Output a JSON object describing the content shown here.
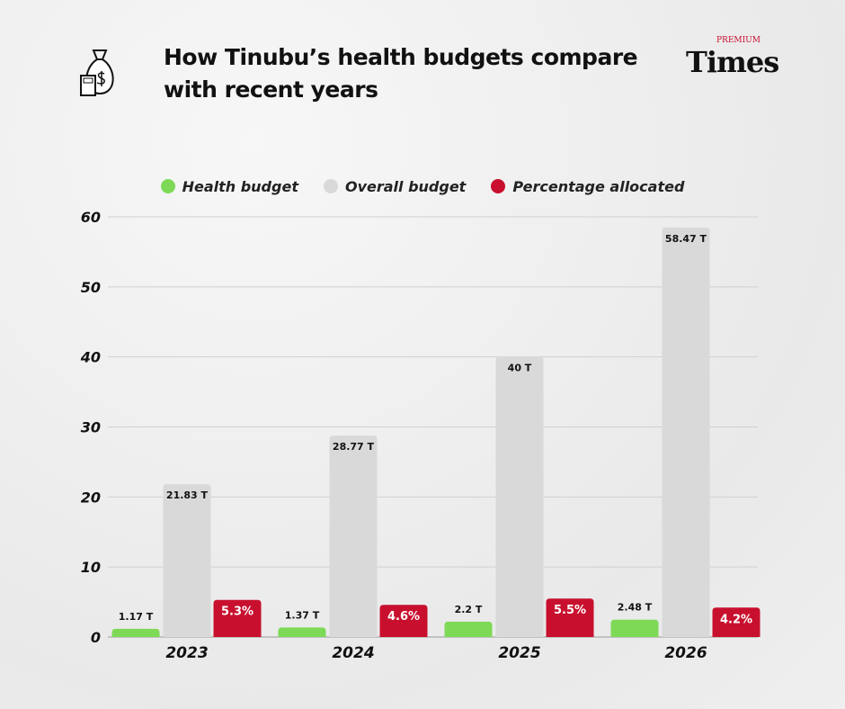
{
  "title": "How Tinubu’s health budgets compare with recent years",
  "logo": {
    "top": "PREMIUM",
    "main": "Times"
  },
  "icons": [
    "money-bag-icon",
    "calculator-icon"
  ],
  "chart_data": {
    "type": "bar",
    "title": "How Tinubu’s health budgets compare with recent years",
    "categories": [
      "2023",
      "2024",
      "2025",
      "2026"
    ],
    "series": [
      {
        "name": "Health budget",
        "color": "#7ed957",
        "values": [
          1.17,
          1.37,
          2.2,
          2.48
        ],
        "labels": [
          "1.17 T",
          "1.37 T",
          "2.2 T",
          "2.48 T"
        ]
      },
      {
        "name": "Overall budget",
        "color": "#d9d9d9",
        "values": [
          21.83,
          28.77,
          40,
          58.47
        ],
        "labels": [
          "21.83 T",
          "28.77 T",
          "40 T",
          "58.47 T"
        ]
      },
      {
        "name": "Percentage allocated",
        "color": "#c8102e",
        "values": [
          5.3,
          4.6,
          5.5,
          4.2
        ],
        "labels": [
          "5.3%",
          "4.6%",
          "5.5%",
          "4.2%"
        ]
      }
    ],
    "yticks": [
      "0",
      "10",
      "20",
      "30",
      "40",
      "50",
      "60"
    ],
    "ylim": [
      0,
      60
    ],
    "grid": true,
    "legend": "top-center"
  }
}
